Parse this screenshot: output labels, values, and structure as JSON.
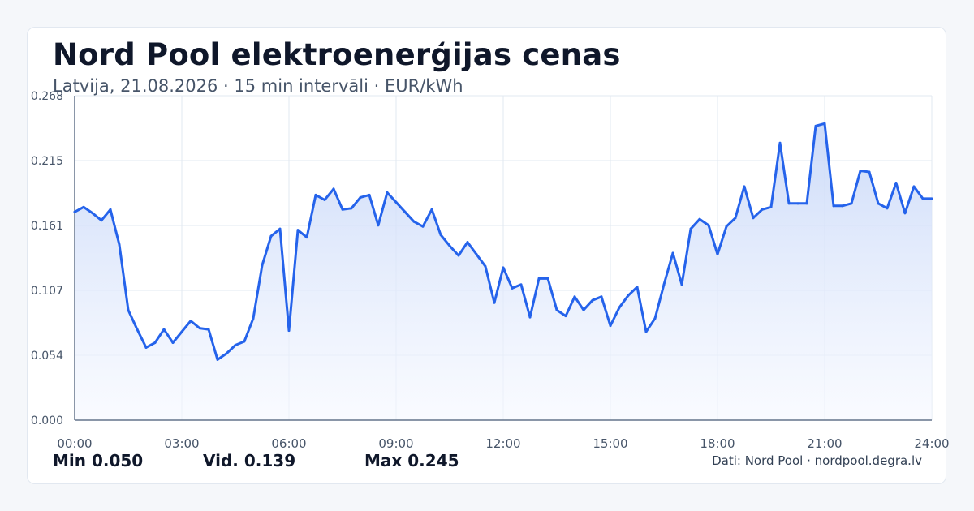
{
  "header": {
    "title": "Nord Pool elektroenerģijas cenas",
    "subtitle": "Latvija, 21.08.2026 · 15 min intervāli · EUR/kWh"
  },
  "stats": {
    "min_label": "Min 0.050",
    "avg_label": "Vid. 0.139",
    "max_label": "Max 0.245"
  },
  "footer": {
    "source": "Dati: Nord Pool · nordpool.degra.lv"
  },
  "colors": {
    "line": "#2563eb",
    "fill_top": "#c7d7f8",
    "grid": "#e2e8f0",
    "axis": "#64748b",
    "tick_text": "#475569"
  },
  "chart_data": {
    "type": "area",
    "title": "Nord Pool elektroenerģijas cenas",
    "subtitle": "Latvija, 21.08.2026 · 15 min intervāli · EUR/kWh",
    "xlabel": "",
    "ylabel": "",
    "xlim": [
      0,
      24
    ],
    "ylim": [
      0,
      0.268
    ],
    "x_ticks": [
      "00:00",
      "03:00",
      "06:00",
      "09:00",
      "12:00",
      "15:00",
      "18:00",
      "21:00",
      "24:00"
    ],
    "y_ticks": [
      "0.000",
      "0.054",
      "0.107",
      "0.161",
      "0.215",
      "0.268"
    ],
    "grid": true,
    "legend": "none",
    "series": [
      {
        "x": [
          0,
          0.25,
          0.5,
          0.75,
          1,
          1.25,
          1.5,
          1.75,
          2,
          2.25,
          2.5,
          2.75,
          3,
          3.25,
          3.5,
          3.75,
          4,
          4.25,
          4.5,
          4.75,
          5,
          5.25,
          5.5,
          5.75,
          6,
          6.25,
          6.5,
          6.75,
          7,
          7.25,
          7.5,
          7.75,
          8,
          8.25,
          8.5,
          8.75,
          9,
          9.25,
          9.5,
          9.75,
          10,
          10.25,
          10.5,
          10.75,
          11,
          11.25,
          11.5,
          11.75,
          12,
          12.25,
          12.5,
          12.75,
          13,
          13.25,
          13.5,
          13.75,
          14,
          14.25,
          14.5,
          14.75,
          15,
          15.25,
          15.5,
          15.75,
          16,
          16.25,
          16.5,
          16.75,
          17,
          17.25,
          17.5,
          17.75,
          18,
          18.25,
          18.5,
          18.75,
          19,
          19.25,
          19.5,
          19.75,
          20,
          20.25,
          20.5,
          20.75,
          21,
          21.25,
          21.5,
          21.75,
          22,
          22.25,
          22.5,
          22.75,
          23,
          23.25,
          23.5,
          23.75
        ],
        "values": [
          0.172,
          0.176,
          0.171,
          0.165,
          0.174,
          0.145,
          0.091,
          0.075,
          0.06,
          0.064,
          0.075,
          0.064,
          0.073,
          0.082,
          0.076,
          0.075,
          0.05,
          0.055,
          0.062,
          0.065,
          0.084,
          0.128,
          0.152,
          0.158,
          0.074,
          0.157,
          0.151,
          0.186,
          0.182,
          0.191,
          0.174,
          0.175,
          0.184,
          0.186,
          0.161,
          0.188,
          0.18,
          0.172,
          0.164,
          0.16,
          0.174,
          0.153,
          0.144,
          0.136,
          0.147,
          0.137,
          0.127,
          0.097,
          0.126,
          0.109,
          0.112,
          0.085,
          0.117,
          0.117,
          0.091,
          0.086,
          0.102,
          0.091,
          0.099,
          0.102,
          0.078,
          0.093,
          0.103,
          0.11,
          0.073,
          0.084,
          0.112,
          0.138,
          0.112,
          0.158,
          0.166,
          0.161,
          0.137,
          0.16,
          0.167,
          0.193,
          0.167,
          0.174,
          0.176,
          0.229,
          0.179,
          0.179,
          0.179,
          0.243,
          0.245,
          0.177,
          0.177,
          0.179,
          0.206,
          0.205,
          0.179,
          0.175,
          0.196,
          0.171,
          0.193,
          0.183
        ]
      }
    ]
  }
}
